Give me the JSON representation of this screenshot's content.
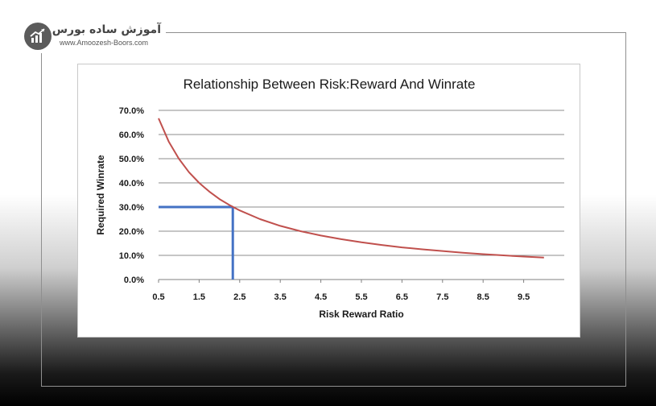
{
  "brand": {
    "title": "آموزش ساده بورس",
    "url": "www.Amoozesh-Boors.com",
    "logo_icon": "chart-growth-icon"
  },
  "chart_data": {
    "type": "line",
    "title": "Relationship Between Risk:Reward And Winrate",
    "xlabel": "Risk Reward Ratio",
    "ylabel": "Required Winrate",
    "xlim": [
      0.5,
      10.5
    ],
    "ylim": [
      0,
      0.7
    ],
    "x_ticks": [
      "0.5",
      "1.5",
      "2.5",
      "3.5",
      "4.5",
      "5.5",
      "6.5",
      "7.5",
      "8.5",
      "9.5"
    ],
    "y_ticks": [
      "0.0%",
      "10.0%",
      "20.0%",
      "30.0%",
      "40.0%",
      "50.0%",
      "60.0%",
      "70.0%"
    ],
    "grid": "horizontal",
    "series": [
      {
        "color": "#c0504d",
        "x": [
          0.5,
          0.75,
          1,
          1.25,
          1.5,
          1.75,
          2,
          2.25,
          2.5,
          3,
          3.5,
          4,
          4.5,
          5,
          5.5,
          6,
          6.5,
          7,
          7.5,
          8,
          8.5,
          9,
          9.5,
          10
        ],
        "y": [
          0.667,
          0.571,
          0.5,
          0.444,
          0.4,
          0.364,
          0.333,
          0.308,
          0.286,
          0.25,
          0.222,
          0.2,
          0.182,
          0.167,
          0.154,
          0.143,
          0.133,
          0.125,
          0.118,
          0.111,
          0.105,
          0.1,
          0.095,
          0.091
        ]
      }
    ],
    "annotation": {
      "color": "#4472c4",
      "x": 2.33,
      "y": 0.3
    }
  }
}
